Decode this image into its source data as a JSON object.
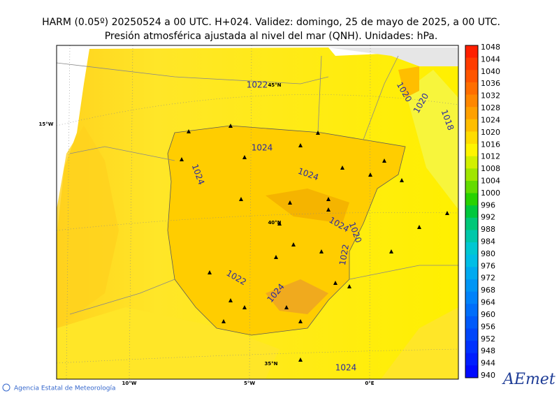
{
  "header": {
    "line1": "HARM (0.05º) 20250524 a 00 UTC. H+024. Validez: domingo, 25 de mayo de 2025, a 00 UTC.",
    "line2": "Presión atmosférica ajustada al nivel del mar (QNH). Unidades: hPa."
  },
  "map": {
    "contour_labels": [
      1022,
      1020,
      1020,
      1018,
      1024,
      1024,
      1024,
      1024,
      1020,
      1022,
      1022,
      1024,
      1024
    ],
    "grid_labels": [
      "15°W",
      "45°N",
      "40°N",
      "35°N",
      "10°W",
      "5°W",
      "0°E"
    ]
  },
  "colorbar": {
    "labels": [
      1048,
      1044,
      1040,
      1036,
      1032,
      1028,
      1024,
      1020,
      1016,
      1012,
      1008,
      1004,
      1000,
      996,
      992,
      988,
      984,
      980,
      976,
      972,
      968,
      964,
      960,
      956,
      952,
      948,
      944,
      940
    ],
    "colors": [
      "#ff2000",
      "#ff3c00",
      "#ff5500",
      "#ff6e00",
      "#ff8700",
      "#ffa000",
      "#ffbe00",
      "#ffdc00",
      "#fff500",
      "#d2f000",
      "#a0e600",
      "#64dc00",
      "#28d200",
      "#00c83c",
      "#00c878",
      "#00c8aa",
      "#00c8d2",
      "#00bee6",
      "#00aaf0",
      "#0096f5",
      "#0082fa",
      "#006efa",
      "#005afa",
      "#0046fa",
      "#0032ff",
      "#001eff",
      "#000aff"
    ]
  },
  "footer": {
    "agency": "Agencia Estatal de Meteorología",
    "logo": "AEmet"
  }
}
